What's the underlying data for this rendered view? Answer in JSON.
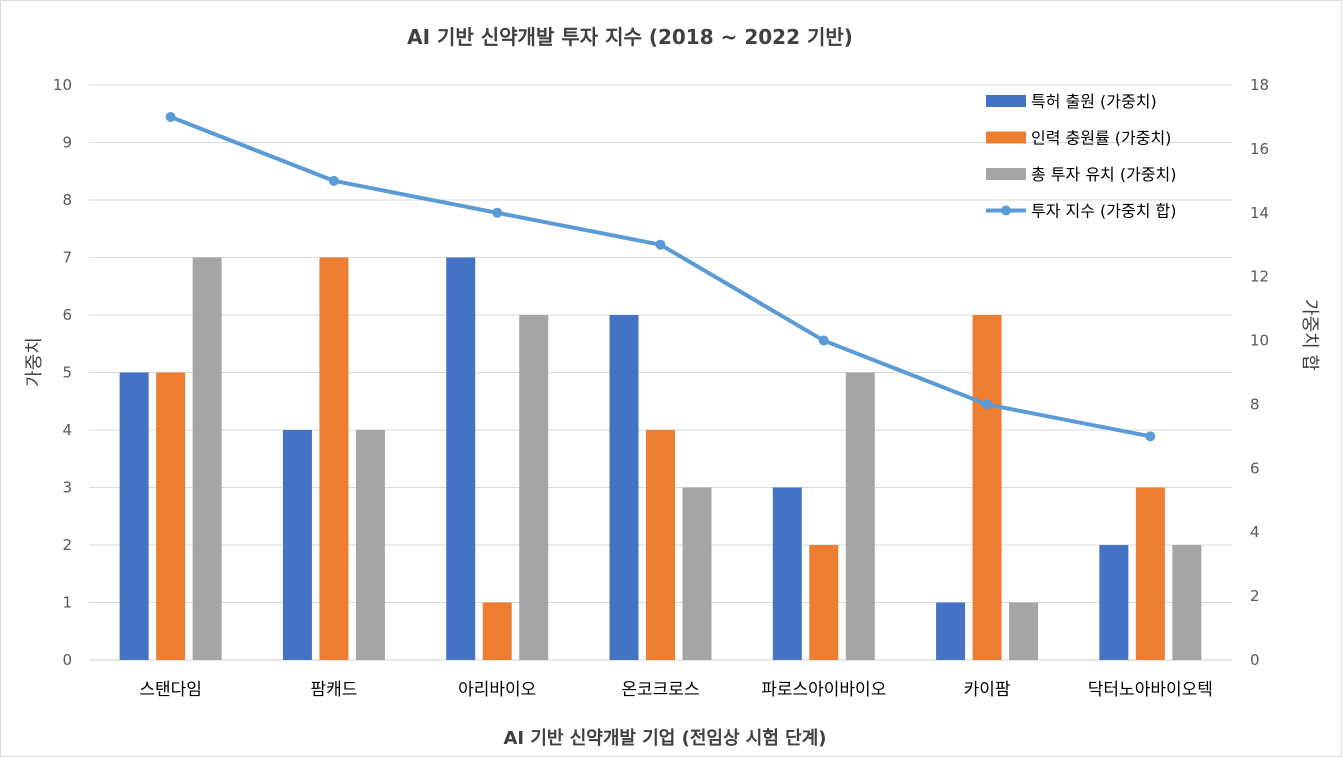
{
  "chart_data": {
    "type": "bar",
    "title": "AI 기반 신약개발 투자 지수 (2018 ~ 2022 기반)",
    "xlabel": "AI 기반 신약개발 기업 (전임상 시험 단계)",
    "ylabel": "가중치",
    "y2label": "가중치 합",
    "categories": [
      "스탠다임",
      "팜캐드",
      "아리바이오",
      "온코크로스",
      "파로스아이바이오",
      "카이팜",
      "닥터노아바이오텍"
    ],
    "ylim": [
      0,
      10
    ],
    "y2lim": [
      0,
      18
    ],
    "yticks": [
      "0",
      "1",
      "2",
      "3",
      "4",
      "5",
      "6",
      "7",
      "8",
      "9",
      "10"
    ],
    "y2ticks": [
      "0",
      "2",
      "4",
      "6",
      "8",
      "10",
      "12",
      "14",
      "16",
      "18"
    ],
    "grid": true,
    "legend_position": "top-right",
    "series": [
      {
        "name": "특허 출원 (가중치)",
        "kind": "bar",
        "axis": "left",
        "color": "#4472c4",
        "values": [
          5,
          4,
          7,
          6,
          3,
          1,
          2
        ]
      },
      {
        "name": "인력 충원률 (가중치)",
        "kind": "bar",
        "axis": "left",
        "color": "#ed7d31",
        "values": [
          5,
          7,
          1,
          4,
          2,
          6,
          3
        ]
      },
      {
        "name": "총 투자 유치 (가중치)",
        "kind": "bar",
        "axis": "left",
        "color": "#a5a5a5",
        "values": [
          7,
          4,
          6,
          3,
          5,
          1,
          2
        ]
      },
      {
        "name": "투자 지수 (가중치 합)",
        "kind": "line",
        "axis": "right",
        "color": "#5b9bd5",
        "values": [
          17,
          15,
          14,
          13,
          10,
          8,
          7
        ]
      }
    ]
  }
}
